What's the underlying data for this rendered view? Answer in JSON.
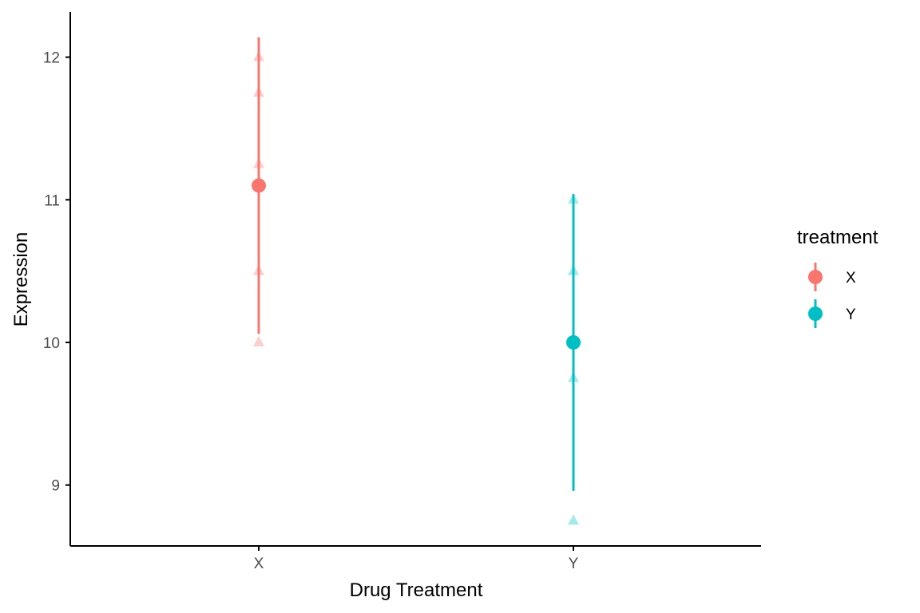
{
  "chart_data": {
    "type": "scatter",
    "title": "",
    "xlabel": "Drug Treatment",
    "ylabel": "Expression",
    "categories": [
      "X",
      "Y"
    ],
    "yticks": [
      9,
      10,
      11,
      12
    ],
    "ylim": [
      8.62,
      12.31
    ],
    "grid": false,
    "legend": {
      "title": "treatment",
      "position": "right",
      "entries": [
        "X",
        "Y"
      ]
    },
    "series": [
      {
        "name": "X",
        "color": "#F8766D",
        "raw_points": [
          10.0,
          10.5,
          11.25,
          11.75,
          12.0
        ],
        "mean": 11.1,
        "error_low": 10.06,
        "error_high": 12.14
      },
      {
        "name": "Y",
        "color": "#00BFC4",
        "raw_points": [
          8.75,
          9.75,
          10.0,
          10.5,
          11.0
        ],
        "mean": 10.0,
        "error_low": 8.96,
        "error_high": 11.04
      }
    ]
  }
}
